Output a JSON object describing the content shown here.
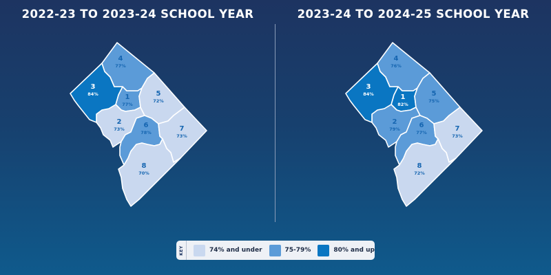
{
  "titles": {
    "left": "2022-23 TO 2023-24 SCHOOL YEAR",
    "right": "2023-24 TO 2024-25 SCHOOL YEAR"
  },
  "colors": {
    "low": "#c9d8ef",
    "mid": "#5b9bd8",
    "high": "#0a76c2",
    "label": "#1565b0",
    "border": "#ffffff"
  },
  "maps": {
    "left": {
      "wards": [
        {
          "num": "1",
          "pct": "77%",
          "tier": "mid"
        },
        {
          "num": "2",
          "pct": "73%",
          "tier": "low"
        },
        {
          "num": "3",
          "pct": "84%",
          "tier": "high"
        },
        {
          "num": "4",
          "pct": "77%",
          "tier": "mid"
        },
        {
          "num": "5",
          "pct": "72%",
          "tier": "low"
        },
        {
          "num": "6",
          "pct": "78%",
          "tier": "mid"
        },
        {
          "num": "7",
          "pct": "73%",
          "tier": "low"
        },
        {
          "num": "8",
          "pct": "70%",
          "tier": "low"
        }
      ]
    },
    "right": {
      "wards": [
        {
          "num": "1",
          "pct": "82%",
          "tier": "high"
        },
        {
          "num": "2",
          "pct": "79%",
          "tier": "mid"
        },
        {
          "num": "3",
          "pct": "84%",
          "tier": "high"
        },
        {
          "num": "4",
          "pct": "76%",
          "tier": "mid"
        },
        {
          "num": "5",
          "pct": "75%",
          "tier": "mid"
        },
        {
          "num": "6",
          "pct": "77%",
          "tier": "mid"
        },
        {
          "num": "7",
          "pct": "73%",
          "tier": "low"
        },
        {
          "num": "8",
          "pct": "72%",
          "tier": "low"
        }
      ]
    }
  },
  "legend": {
    "key_label": "KEY",
    "items": [
      {
        "label": "74% and under",
        "tier": "low"
      },
      {
        "label": "75-79%",
        "tier": "mid"
      },
      {
        "label": "80% and up",
        "tier": "high"
      }
    ]
  }
}
